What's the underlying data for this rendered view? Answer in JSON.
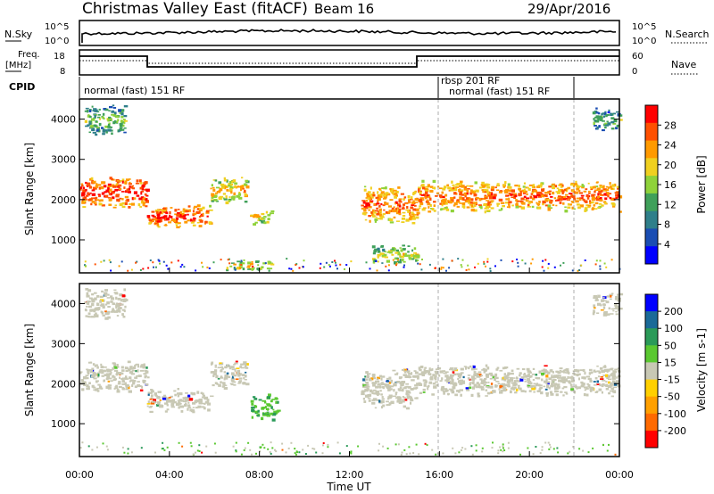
{
  "header": {
    "title": "Christmas Valley East (fitACF)",
    "beam": "Beam 16",
    "date": "29/Apr/2016"
  },
  "top_panels": {
    "nsky_label": "N.Sky",
    "nsky_ticks": [
      "10^5",
      "10^0"
    ],
    "nsearch_label": "N.Search",
    "freq_label": "Freq.",
    "freq_unit": "[MHz]",
    "freq_ticks": [
      "18",
      "8"
    ],
    "nave_label": "Nave",
    "nave_ticks": [
      "60",
      "0"
    ],
    "cpid_label": "CPID",
    "cpid_segments": [
      {
        "label": "normal (fast) 151 RF",
        "start": 0.0
      },
      {
        "label": "rbsp 201 RF",
        "start": 16.0
      },
      {
        "label": "normal (fast) 151 RF",
        "start": 16.0
      }
    ]
  },
  "colors": {
    "power_scale": [
      "#0000ff",
      "#1a4db3",
      "#2f7f8a",
      "#3fa05a",
      "#8fd23a",
      "#f0d020",
      "#ff9a00",
      "#ff5000",
      "#ff0000"
    ],
    "velocity_scale": [
      "#ff0000",
      "#ff6a00",
      "#ffa000",
      "#ffd000",
      "#c8c8b4",
      "#5ac830",
      "#2a9a58",
      "#1a6a98",
      "#0000ff"
    ],
    "ground_scatter": "#c8c8b4"
  },
  "chart_data": [
    {
      "type": "heatmap",
      "name": "power-panel",
      "xlabel": "",
      "ylabel": "Slant Range [km]",
      "xlim": [
        0,
        24
      ],
      "ylim": [
        180,
        4500
      ],
      "yticks": [
        "1000",
        "2000",
        "3000",
        "4000"
      ],
      "colorbar": {
        "label": "Power [dB]",
        "range": [
          0,
          32
        ],
        "ticks": [
          "4",
          "8",
          "12",
          "16",
          "20",
          "24",
          "28"
        ]
      },
      "bands": [
        {
          "t0": 0.0,
          "t1": 3.0,
          "r0": 1800,
          "r1": 2600,
          "level": 0.85
        },
        {
          "t0": 3.0,
          "t1": 5.8,
          "r0": 1300,
          "r1": 1900,
          "level": 0.8
        },
        {
          "t0": 5.8,
          "t1": 7.4,
          "r0": 1900,
          "r1": 2600,
          "level": 0.6
        },
        {
          "t0": 7.5,
          "t1": 8.5,
          "r0": 1400,
          "r1": 1800,
          "level": 0.55
        },
        {
          "t0": 12.5,
          "t1": 15.0,
          "r0": 1400,
          "r1": 2400,
          "level": 0.75
        },
        {
          "t0": 15.0,
          "t1": 24.0,
          "r0": 1700,
          "r1": 2500,
          "level": 0.75
        },
        {
          "t0": 0.2,
          "t1": 2.0,
          "r0": 3600,
          "r1": 4400,
          "level": 0.4
        },
        {
          "t0": 22.8,
          "t1": 24.0,
          "r0": 3700,
          "r1": 4300,
          "level": 0.35
        },
        {
          "t0": 6.5,
          "t1": 8.5,
          "r0": 250,
          "r1": 500,
          "level": 0.6
        },
        {
          "t0": 13.0,
          "t1": 15.0,
          "r0": 400,
          "r1": 900,
          "level": 0.5
        }
      ]
    },
    {
      "type": "heatmap",
      "name": "velocity-panel",
      "xlabel": "Time UT",
      "ylabel": "Slant Range [km]",
      "xlim": [
        0,
        24
      ],
      "ylim": [
        180,
        4500
      ],
      "xticks": [
        "00:00",
        "04:00",
        "08:00",
        "12:00",
        "16:00",
        "20:00",
        "00:00"
      ],
      "yticks": [
        "1000",
        "2000",
        "3000",
        "4000"
      ],
      "colorbar": {
        "label": "Velocity [m s-1]",
        "ticks": [
          "-200",
          "-100",
          "-50",
          "-15",
          "15",
          "50",
          "100",
          "200"
        ]
      },
      "bands": [
        {
          "t0": 0.0,
          "t1": 3.0,
          "r0": 1800,
          "r1": 2600,
          "level": 0.45
        },
        {
          "t0": 3.0,
          "t1": 5.8,
          "r0": 1300,
          "r1": 1900,
          "level": 0.45
        },
        {
          "t0": 5.8,
          "t1": 7.4,
          "r0": 1900,
          "r1": 2600,
          "level": 0.45
        },
        {
          "t0": 7.6,
          "t1": 8.8,
          "r0": 1100,
          "r1": 1800,
          "level": 0.62
        },
        {
          "t0": 12.5,
          "t1": 15.0,
          "r0": 1400,
          "r1": 2400,
          "level": 0.45
        },
        {
          "t0": 15.0,
          "t1": 24.0,
          "r0": 1700,
          "r1": 2500,
          "level": 0.45
        },
        {
          "t0": 0.2,
          "t1": 2.0,
          "r0": 3600,
          "r1": 4400,
          "level": 0.45
        },
        {
          "t0": 22.8,
          "t1": 24.0,
          "r0": 3700,
          "r1": 4300,
          "level": 0.45
        }
      ]
    }
  ]
}
